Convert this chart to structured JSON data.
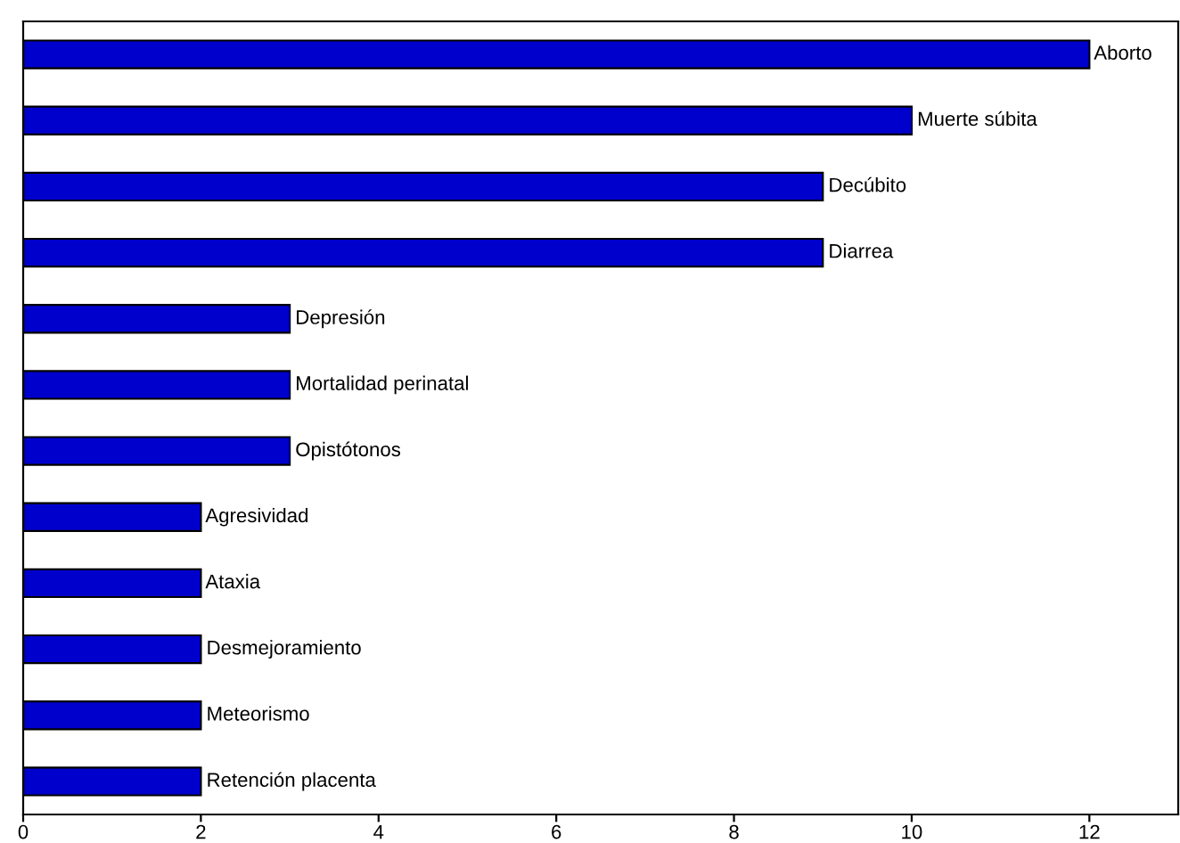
{
  "chart_data": {
    "type": "bar",
    "orientation": "horizontal",
    "categories": [
      "Aborto",
      "Muerte súbita",
      "Decúbito",
      "Diarrea",
      "Depresión",
      "Mortalidad perinatal",
      "Opistótonos",
      "Agresividad",
      "Ataxia",
      "Desmejoramiento",
      "Meteorismo",
      "Retención placenta"
    ],
    "values": [
      12,
      10,
      9,
      9,
      3,
      3,
      3,
      2,
      2,
      2,
      2,
      2
    ],
    "color": "#0000cc",
    "xlim": [
      0,
      13
    ],
    "xticks": [
      0,
      2,
      4,
      6,
      8,
      10,
      12
    ],
    "tick_labels": "x",
    "grid": false,
    "legend": false
  }
}
